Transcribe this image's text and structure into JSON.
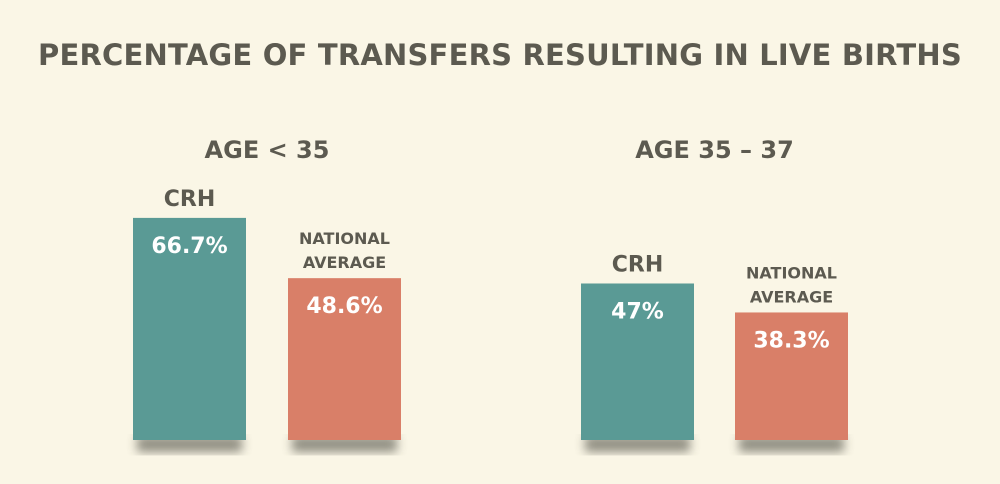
{
  "title": "PERCENTAGE OF TRANSFERS RESULTING IN LIVE BIRTHS",
  "colors": {
    "background": "#faf6e6",
    "crh": "#5a9a95",
    "national": "#d97f68",
    "text": "#5c5a50",
    "shadow": "#3a3a32"
  },
  "chart_data": {
    "type": "bar",
    "title": "PERCENTAGE OF TRANSFERS RESULTING IN LIVE BIRTHS",
    "categories": [
      "AGE < 35",
      "AGE 35 – 37"
    ],
    "series": [
      {
        "name": "CRH",
        "values": [
          66.7,
          47
        ],
        "labels": [
          "66.7%",
          "47%"
        ]
      },
      {
        "name": "NATIONAL AVERAGE",
        "values": [
          48.6,
          38.3
        ],
        "labels": [
          "48.6%",
          "38.3%"
        ]
      }
    ],
    "ylim": [
      0,
      100
    ],
    "grid": false,
    "legend": "none"
  }
}
